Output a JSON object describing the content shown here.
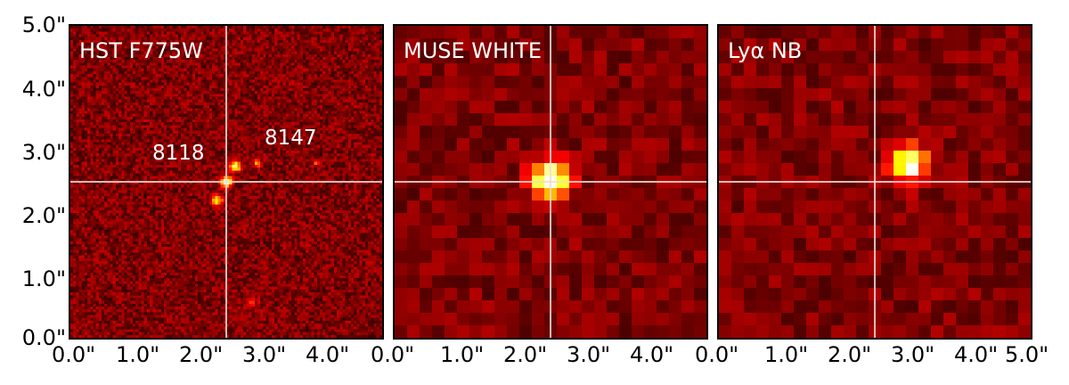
{
  "panels": [
    {
      "label": "HST F775W",
      "seed": 11,
      "grid": 110,
      "sources": [
        {
          "x": 2.5,
          "y": 2.5,
          "amp": 1.0,
          "sigma": 0.06
        },
        {
          "x": 2.65,
          "y": 2.75,
          "amp": 0.8,
          "sigma": 0.06
        },
        {
          "x": 2.35,
          "y": 2.2,
          "amp": 0.6,
          "sigma": 0.07
        },
        {
          "x": 3.0,
          "y": 2.8,
          "amp": 0.6,
          "sigma": 0.04
        },
        {
          "x": 3.95,
          "y": 2.8,
          "amp": 0.3,
          "sigma": 0.04
        },
        {
          "x": 2.9,
          "y": 0.55,
          "amp": 0.2,
          "sigma": 0.08
        }
      ]
    },
    {
      "label": "MUSE WHITE",
      "seed": 23,
      "grid": 25,
      "sources": [
        {
          "x": 2.5,
          "y": 2.55,
          "amp": 1.0,
          "sigma": 0.22
        }
      ]
    },
    {
      "label": "Lyα NB",
      "seed": 37,
      "grid": 25,
      "sources": [
        {
          "x": 3.05,
          "y": 2.8,
          "amp": 1.0,
          "sigma": 0.2
        }
      ]
    }
  ],
  "objects": [
    {
      "id": "8118",
      "label": "8118"
    },
    {
      "id": "8147",
      "label": "8147"
    }
  ],
  "crosshair": {
    "x": 2.5,
    "y": 2.5
  },
  "y_ticks": [
    "5.0\"",
    "4.0\"",
    "3.0\"",
    "2.0\"",
    "1.0\"",
    "0.0\""
  ],
  "x_ticks": [
    "0.0\"",
    "1.0\"",
    "2.0\"",
    "3.0\"",
    "4.0\"",
    "0.0\"",
    "1.0\"",
    "2.0\"",
    "3.0\"",
    "4.0\"",
    "0.0\"",
    "1.0\"",
    "2.0\"",
    "3.0\"",
    "4.0\"",
    "5.0\""
  ],
  "colormap": "hot"
}
